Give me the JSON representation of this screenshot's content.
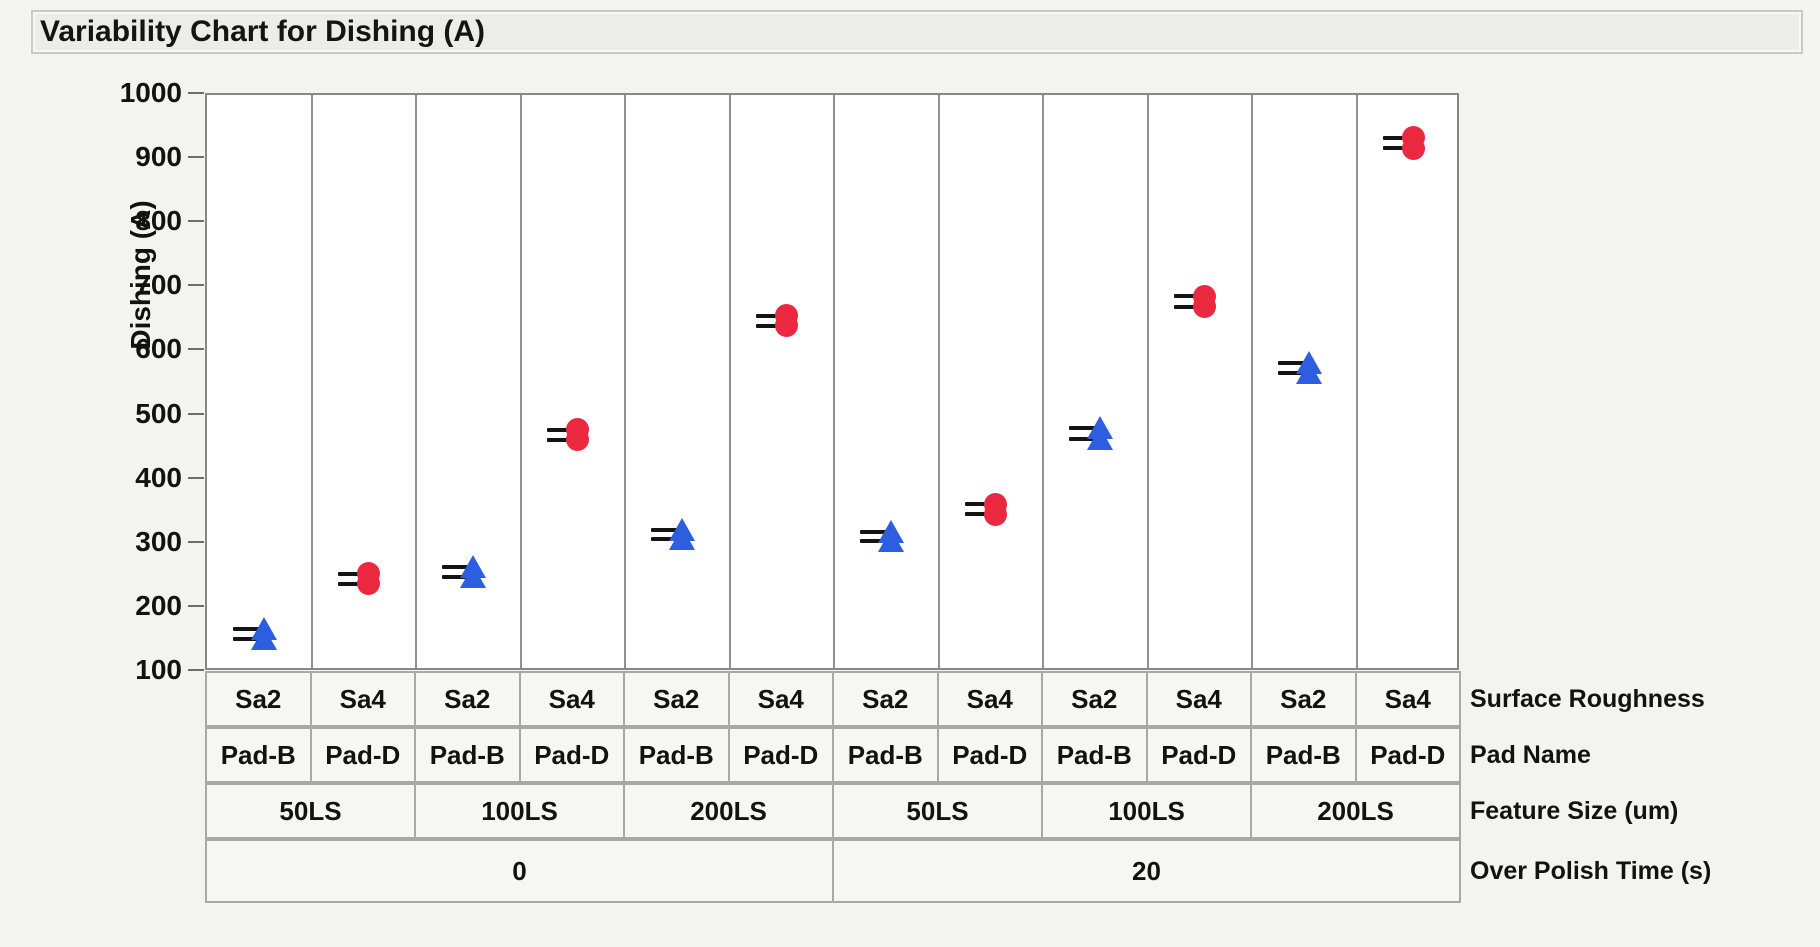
{
  "window": {
    "title": "Variability Chart for Dishing (A)"
  },
  "colors": {
    "marker_blue": "#2e5ee0",
    "marker_red": "#ea2941",
    "dash_black": "#141414",
    "plot_border_gray": "#878787",
    "cell_background": "#f6f6f5"
  },
  "chart_data": {
    "type": "scatter",
    "subtype": "variability-chart",
    "title": "Variability Chart for Dishing (A)",
    "ylabel": "Dishing (A)",
    "ylim": [
      100,
      1000
    ],
    "yticks": [
      1000,
      900,
      800,
      700,
      600,
      500,
      400,
      300,
      200,
      100
    ],
    "grid": "off",
    "legend_position": "none",
    "series": [
      {
        "name": "Sa2 / Pad-B",
        "marker": "triangle",
        "color": "#2e5ee0"
      },
      {
        "name": "Sa4 / Pad-D",
        "marker": "circle",
        "color": "#ea2941"
      }
    ],
    "factors": [
      {
        "label": "Surface Roughness",
        "cells": [
          {
            "text": "Sa2",
            "span": 1
          },
          {
            "text": "Sa4",
            "span": 1
          },
          {
            "text": "Sa2",
            "span": 1
          },
          {
            "text": "Sa4",
            "span": 1
          },
          {
            "text": "Sa2",
            "span": 1
          },
          {
            "text": "Sa4",
            "span": 1
          },
          {
            "text": "Sa2",
            "span": 1
          },
          {
            "text": "Sa4",
            "span": 1
          },
          {
            "text": "Sa2",
            "span": 1
          },
          {
            "text": "Sa4",
            "span": 1
          },
          {
            "text": "Sa2",
            "span": 1
          },
          {
            "text": "Sa4",
            "span": 1
          }
        ]
      },
      {
        "label": "Pad Name",
        "cells": [
          {
            "text": "Pad-B",
            "span": 1
          },
          {
            "text": "Pad-D",
            "span": 1
          },
          {
            "text": "Pad-B",
            "span": 1
          },
          {
            "text": "Pad-D",
            "span": 1
          },
          {
            "text": "Pad-B",
            "span": 1
          },
          {
            "text": "Pad-D",
            "span": 1
          },
          {
            "text": "Pad-B",
            "span": 1
          },
          {
            "text": "Pad-D",
            "span": 1
          },
          {
            "text": "Pad-B",
            "span": 1
          },
          {
            "text": "Pad-D",
            "span": 1
          },
          {
            "text": "Pad-B",
            "span": 1
          },
          {
            "text": "Pad-D",
            "span": 1
          }
        ]
      },
      {
        "label": "Feature Size (um)",
        "cells": [
          {
            "text": "50LS",
            "span": 2
          },
          {
            "text": "100LS",
            "span": 2
          },
          {
            "text": "200LS",
            "span": 2
          },
          {
            "text": "50LS",
            "span": 2
          },
          {
            "text": "100LS",
            "span": 2
          },
          {
            "text": "200LS",
            "span": 2
          }
        ]
      },
      {
        "label": "Over Polish Time (s)",
        "cells": [
          {
            "text": "0",
            "span": 6
          },
          {
            "text": "20",
            "span": 6
          }
        ]
      }
    ],
    "cells": [
      {
        "over_polish_time": "0",
        "feature_size": "50LS",
        "surface_roughness": "Sa2",
        "pad_name": "Pad-B",
        "marker": "triangle",
        "values": [
          152,
          167
        ]
      },
      {
        "over_polish_time": "0",
        "feature_size": "50LS",
        "surface_roughness": "Sa4",
        "pad_name": "Pad-D",
        "marker": "circle",
        "values": [
          238,
          253
        ]
      },
      {
        "over_polish_time": "0",
        "feature_size": "100LS",
        "surface_roughness": "Sa2",
        "pad_name": "Pad-B",
        "marker": "triangle",
        "values": [
          248,
          263
        ]
      },
      {
        "over_polish_time": "0",
        "feature_size": "100LS",
        "surface_roughness": "Sa4",
        "pad_name": "Pad-D",
        "marker": "circle",
        "values": [
          462,
          478
        ]
      },
      {
        "over_polish_time": "0",
        "feature_size": "200LS",
        "surface_roughness": "Sa2",
        "pad_name": "Pad-B",
        "marker": "triangle",
        "values": [
          307,
          322
        ]
      },
      {
        "over_polish_time": "0",
        "feature_size": "200LS",
        "surface_roughness": "Sa4",
        "pad_name": "Pad-D",
        "marker": "circle",
        "values": [
          640,
          656
        ]
      },
      {
        "over_polish_time": "20",
        "feature_size": "50LS",
        "surface_roughness": "Sa2",
        "pad_name": "Pad-B",
        "marker": "triangle",
        "values": [
          304,
          319
        ]
      },
      {
        "over_polish_time": "20",
        "feature_size": "50LS",
        "surface_roughness": "Sa4",
        "pad_name": "Pad-D",
        "marker": "circle",
        "values": [
          346,
          362
        ]
      },
      {
        "over_polish_time": "20",
        "feature_size": "100LS",
        "surface_roughness": "Sa2",
        "pad_name": "Pad-B",
        "marker": "triangle",
        "values": [
          464,
          480
        ]
      },
      {
        "over_polish_time": "20",
        "feature_size": "100LS",
        "surface_roughness": "Sa4",
        "pad_name": "Pad-D",
        "marker": "circle",
        "values": [
          670,
          686
        ]
      },
      {
        "over_polish_time": "20",
        "feature_size": "200LS",
        "surface_roughness": "Sa2",
        "pad_name": "Pad-B",
        "marker": "triangle",
        "values": [
          566,
          582
        ]
      },
      {
        "over_polish_time": "20",
        "feature_size": "200LS",
        "surface_roughness": "Sa4",
        "pad_name": "Pad-D",
        "marker": "circle",
        "values": [
          917,
          933
        ]
      }
    ]
  }
}
